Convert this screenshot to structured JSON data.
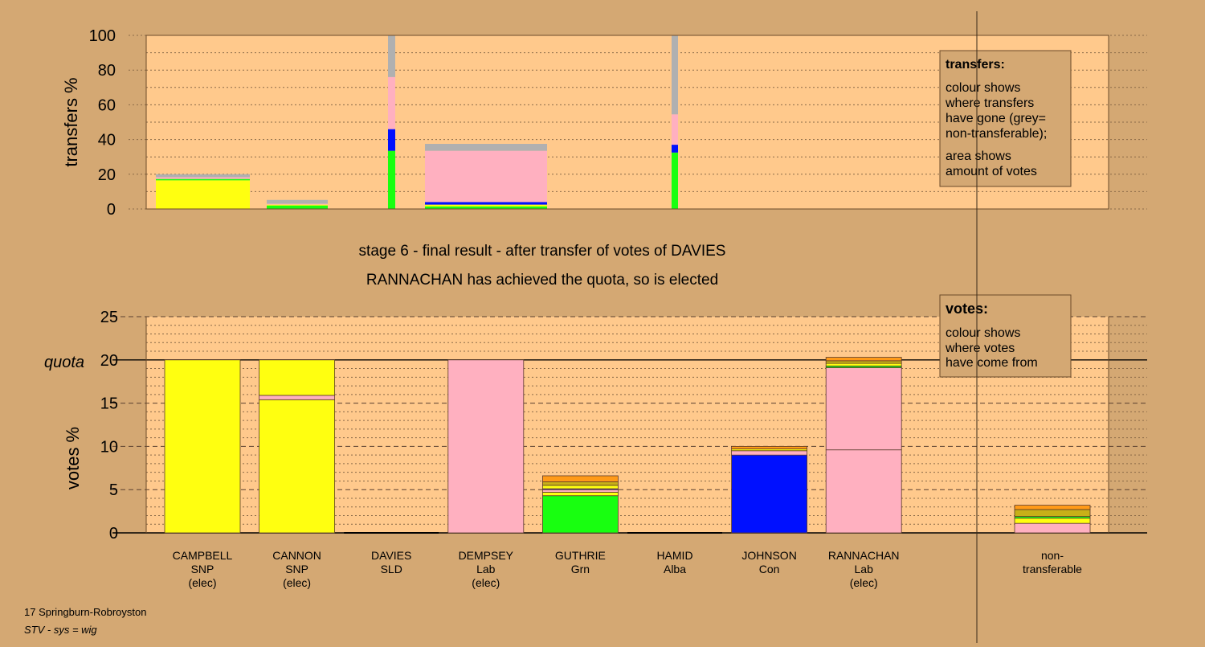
{
  "colors": {
    "page_bg": "#d4a873",
    "plot_bg": "#ffc98c",
    "SNP": "#ffff10",
    "Lab": "#ffb0c0",
    "Con": "#0010ff",
    "Grn": "#18ff10",
    "SLD": "#ff9a18",
    "Alba": "#c8b018",
    "nontransferable": "#b0b0b0"
  },
  "header": {
    "stage_title": "stage 6 - final result - after transfer of votes of DAVIES",
    "stage_subtitle": "RANNACHAN has achieved the quota, so is elected"
  },
  "footer": {
    "ward": "17 Springburn-Robroyston",
    "system": "STV - sys = wig"
  },
  "chart_data": [
    {
      "type": "bar",
      "stacked": true,
      "ylabel": "transfers %",
      "ylim": [
        0,
        100
      ],
      "yticks": [
        0,
        20,
        40,
        60,
        80,
        100
      ],
      "grid": true,
      "legend": {
        "placement": "top-right",
        "title": "transfers:",
        "lines": [
          "colour shows",
          "where transfers",
          "have gone (grey=",
          "non-transferable);"
        ],
        "lines2": [
          "area shows",
          "amount of votes"
        ]
      },
      "transfers": [
        {
          "from": "CAMPBELL",
          "width_votes_pct": 0.2,
          "segments": [
            {
              "party": "SNP",
              "value": 16.5
            },
            {
              "party": "Grn",
              "value": 0.8
            },
            {
              "party": "Lab",
              "value": 1.0
            },
            {
              "party": "nontransferable",
              "value": 1.7
            }
          ]
        },
        {
          "from": "CANNON",
          "width_votes_pct": 0.2,
          "segments": [
            {
              "party": "Grn",
              "value": 2.0
            },
            {
              "party": "SNP",
              "value": 0.5
            },
            {
              "party": "Lab",
              "value": 0.5
            },
            {
              "party": "nontransferable",
              "value": 2.2
            }
          ]
        },
        {
          "from": "DAVIES",
          "width_votes_pct": 0.02,
          "segments": [
            {
              "party": "Grn",
              "value": 33.5
            },
            {
              "party": "Con",
              "value": 12.5
            },
            {
              "party": "Lab",
              "value": 30.0
            },
            {
              "party": "nontransferable",
              "value": 24.0
            }
          ]
        },
        {
          "from": "DEMPSEY",
          "width_votes_pct": 0.32,
          "segments": [
            {
              "party": "Grn",
              "value": 1.5
            },
            {
              "party": "SNP",
              "value": 1.0
            },
            {
              "party": "Con",
              "value": 1.5
            },
            {
              "party": "Lab",
              "value": 29.5
            },
            {
              "party": "nontransferable",
              "value": 4.0
            }
          ]
        },
        {
          "from": "HAMID",
          "width_votes_pct": 0.02,
          "segments": [
            {
              "party": "Grn",
              "value": 32.5
            },
            {
              "party": "Con",
              "value": 4.5
            },
            {
              "party": "Lab",
              "value": 17.5
            },
            {
              "party": "nontransferable",
              "value": 45.5
            }
          ]
        }
      ]
    },
    {
      "type": "bar",
      "stacked": true,
      "ylabel": "votes %",
      "ylim": [
        0,
        25
      ],
      "yticks": [
        0,
        5,
        10,
        15,
        20,
        25
      ],
      "quota": 20,
      "quota_label": "quota",
      "grid": true,
      "legend": {
        "placement": "top-right",
        "title": "votes:",
        "lines": [
          "colour shows",
          "where votes",
          "have come from"
        ]
      },
      "candidates": [
        {
          "name": "CAMPBELL",
          "party": "SNP",
          "status": "(elec)",
          "segments": [
            {
              "party": "SNP",
              "value": 20.0
            }
          ]
        },
        {
          "name": "CANNON",
          "party": "SNP",
          "status": "(elec)",
          "segments": [
            {
              "party": "SNP",
              "value": 15.4
            },
            {
              "party": "Lab",
              "value": 0.5
            },
            {
              "party": "SNP",
              "value": 4.1
            }
          ]
        },
        {
          "name": "DAVIES",
          "party": "SLD",
          "status": "",
          "segments": []
        },
        {
          "name": "DEMPSEY",
          "party": "Lab",
          "status": "(elec)",
          "segments": [
            {
              "party": "Lab",
              "value": 20.0
            }
          ]
        },
        {
          "name": "GUTHRIE",
          "party": "Grn",
          "status": "",
          "segments": [
            {
              "party": "Grn",
              "value": 4.3
            },
            {
              "party": "SNP",
              "value": 0.4
            },
            {
              "party": "Lab",
              "value": 0.3
            },
            {
              "party": "Con",
              "value": 0.1
            },
            {
              "party": "SNP",
              "value": 0.4
            },
            {
              "party": "Alba",
              "value": 0.4
            },
            {
              "party": "SLD",
              "value": 0.7
            }
          ]
        },
        {
          "name": "HAMID",
          "party": "Alba",
          "status": "",
          "segments": []
        },
        {
          "name": "JOHNSON",
          "party": "Con",
          "status": "",
          "segments": [
            {
              "party": "Con",
              "value": 9.0
            },
            {
              "party": "Lab",
              "value": 0.5
            },
            {
              "party": "SNP",
              "value": 0.2
            },
            {
              "party": "SLD",
              "value": 0.3
            }
          ]
        },
        {
          "name": "RANNACHAN",
          "party": "Lab",
          "status": "(elec)",
          "segments": [
            {
              "party": "Lab",
              "value": 9.6
            },
            {
              "party": "Lab",
              "value": 9.5
            },
            {
              "party": "Grn",
              "value": 0.2
            },
            {
              "party": "SNP",
              "value": 0.3
            },
            {
              "party": "Alba",
              "value": 0.3
            },
            {
              "party": "SLD",
              "value": 0.4
            }
          ]
        }
      ],
      "nontransferable": {
        "label_line1": "non-",
        "label_line2": "transferable",
        "segments": [
          {
            "party": "Lab",
            "value": 1.1
          },
          {
            "party": "SNP",
            "value": 0.6
          },
          {
            "party": "Grn",
            "value": 0.2
          },
          {
            "party": "Alba",
            "value": 0.8
          },
          {
            "party": "SLD",
            "value": 0.5
          }
        ]
      }
    }
  ]
}
